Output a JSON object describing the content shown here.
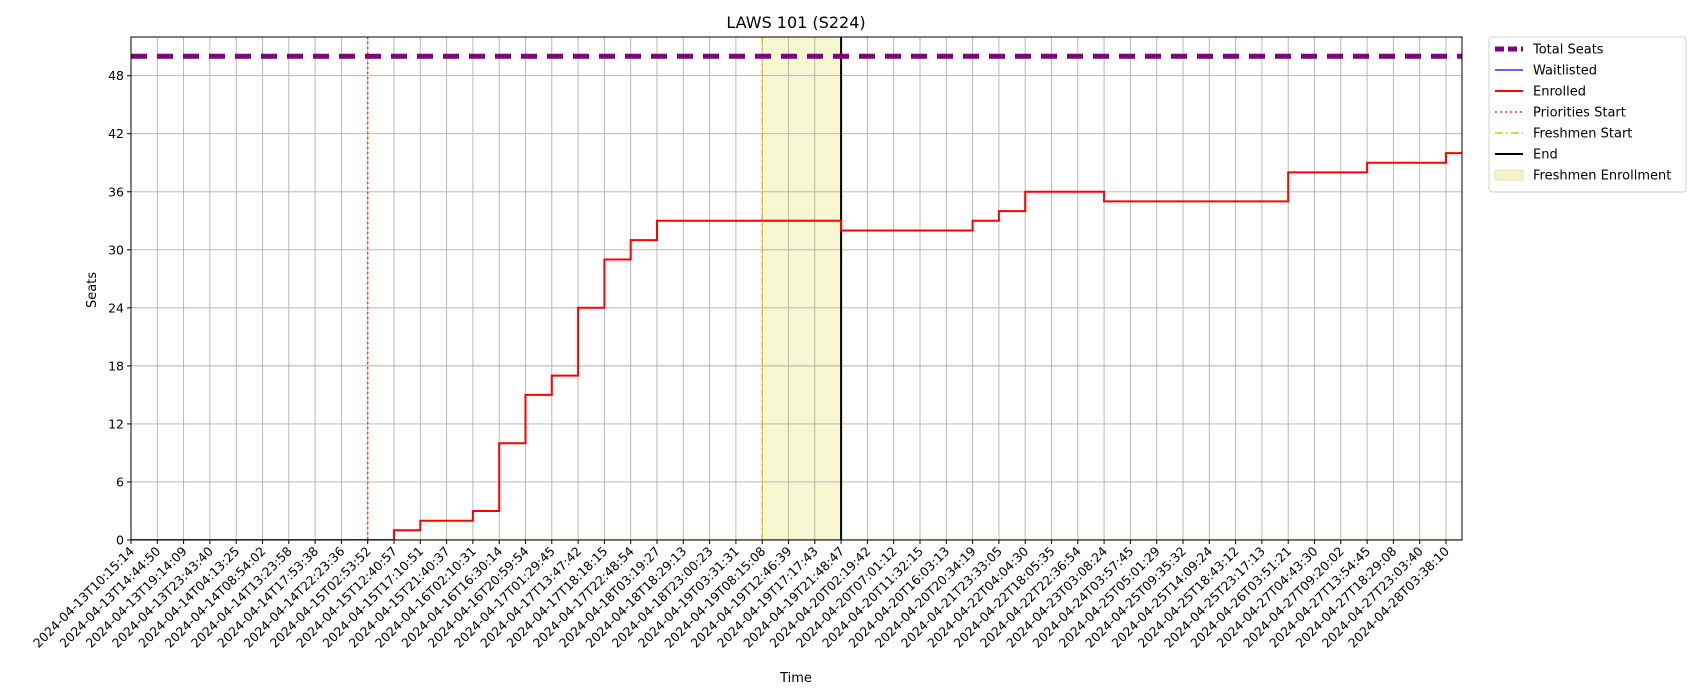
{
  "chart_data": {
    "type": "line",
    "title": "LAWS 101 (S224)",
    "xlabel": "Time",
    "ylabel": "Seats",
    "ylim": [
      0,
      52
    ],
    "yticks": [
      0,
      6,
      12,
      18,
      24,
      30,
      36,
      42,
      48
    ],
    "grid": true,
    "legend_placement": "outside-top-right",
    "x_ticks": [
      "2024-04-13T10:15:14",
      "2024-04-13T14:44:50",
      "2024-04-13T19:14:09",
      "2024-04-13T23:43:40",
      "2024-04-14T04:13:25",
      "2024-04-14T08:54:02",
      "2024-04-14T13:23:58",
      "2024-04-14T17:53:38",
      "2024-04-14T22:23:36",
      "2024-04-15T02:53:52",
      "2024-04-15T12:40:57",
      "2024-04-15T17:10:51",
      "2024-04-15T21:40:37",
      "2024-04-16T02:10:31",
      "2024-04-16T16:30:14",
      "2024-04-16T20:59:54",
      "2024-04-17T01:29:45",
      "2024-04-17T13:47:42",
      "2024-04-17T18:18:15",
      "2024-04-17T22:48:54",
      "2024-04-18T03:19:27",
      "2024-04-18T18:29:13",
      "2024-04-18T23:00:23",
      "2024-04-19T03:31:31",
      "2024-04-19T08:15:08",
      "2024-04-19T12:46:39",
      "2024-04-19T17:17:43",
      "2024-04-19T21:48:47",
      "2024-04-20T02:19:42",
      "2024-04-20T07:01:12",
      "2024-04-20T11:32:15",
      "2024-04-20T16:03:13",
      "2024-04-20T20:34:19",
      "2024-04-21T23:33:05",
      "2024-04-22T04:04:30",
      "2024-04-22T18:05:35",
      "2024-04-22T22:36:54",
      "2024-04-23T03:08:24",
      "2024-04-24T03:57:45",
      "2024-04-25T05:01:29",
      "2024-04-25T09:35:32",
      "2024-04-25T14:09:24",
      "2024-04-25T18:43:12",
      "2024-04-25T23:17:13",
      "2024-04-26T03:51:21",
      "2024-04-27T04:43:30",
      "2024-04-27T09:20:02",
      "2024-04-27T13:54:45",
      "2024-04-27T18:29:08",
      "2024-04-27T23:03:40",
      "2024-04-28T03:38:10"
    ],
    "series": [
      {
        "name": "Total Seats",
        "color": "#800080",
        "style": "dashed-thick",
        "points": [
          [
            "2024-04-13T10:15:14",
            50
          ],
          [
            "2024-04-28T03:38:10",
            50
          ]
        ]
      },
      {
        "name": "Waitlisted",
        "color": "#0000ff",
        "style": "solid-thin",
        "points": [
          [
            "2024-04-13T10:15:14",
            0
          ],
          [
            "2024-04-28T03:38:10",
            0
          ]
        ]
      },
      {
        "name": "Enrolled",
        "color": "#ff0000",
        "style": "step",
        "points": [
          [
            "2024-04-13T10:15:14",
            0
          ],
          [
            "2024-04-15T12:40:57",
            0
          ],
          [
            "2024-04-15T12:40:57",
            1
          ],
          [
            "2024-04-15T17:10:51",
            2
          ],
          [
            "2024-04-15T21:40:37",
            2
          ],
          [
            "2024-04-16T02:10:31",
            3
          ],
          [
            "2024-04-16T16:30:14",
            3
          ],
          [
            "2024-04-16T16:30:14",
            9
          ],
          [
            "2024-04-16T16:30:14",
            10
          ],
          [
            "2024-04-16T20:59:54",
            11
          ],
          [
            "2024-04-16T20:59:54",
            12
          ],
          [
            "2024-04-16T20:59:54",
            13
          ],
          [
            "2024-04-16T20:59:54",
            15
          ],
          [
            "2024-04-17T01:29:45",
            16
          ],
          [
            "2024-04-17T01:29:45",
            17
          ],
          [
            "2024-04-17T13:47:42",
            22
          ],
          [
            "2024-04-17T13:47:42",
            23
          ],
          [
            "2024-04-17T13:47:42",
            24
          ],
          [
            "2024-04-17T18:18:15",
            26
          ],
          [
            "2024-04-17T18:18:15",
            27
          ],
          [
            "2024-04-17T18:18:15",
            28
          ],
          [
            "2024-04-17T18:18:15",
            29
          ],
          [
            "2024-04-17T22:48:54",
            30
          ],
          [
            "2024-04-17T22:48:54",
            31
          ],
          [
            "2024-04-18T03:19:27",
            33
          ],
          [
            "2024-04-19T21:48:47",
            33
          ],
          [
            "2024-04-19T21:48:47",
            32
          ],
          [
            "2024-04-20T20:34:19",
            32
          ],
          [
            "2024-04-20T20:34:19",
            33
          ],
          [
            "2024-04-21T23:33:05",
            34
          ],
          [
            "2024-04-22T04:04:30",
            36
          ],
          [
            "2024-04-23T03:08:24",
            36
          ],
          [
            "2024-04-23T03:08:24",
            35
          ],
          [
            "2024-04-26T03:51:21",
            35
          ],
          [
            "2024-04-26T03:51:21",
            38
          ],
          [
            "2024-04-27T13:54:45",
            38
          ],
          [
            "2024-04-27T13:54:45",
            39
          ],
          [
            "2024-04-28T03:38:10",
            39
          ],
          [
            "2024-04-28T03:38:10",
            40
          ]
        ]
      }
    ],
    "vlines": [
      {
        "name": "Priorities Start",
        "x": "2024-04-15T02:53:52",
        "color": "#ff4500",
        "style": "dotted"
      },
      {
        "name": "Freshmen Start",
        "x": "2024-04-19T08:15:08",
        "color": "#cccc00",
        "style": "dashdot"
      },
      {
        "name": "End",
        "x": "2024-04-19T21:48:47",
        "color": "#000000",
        "style": "solid"
      }
    ],
    "spans": [
      {
        "name": "Freshmen Enrollment",
        "from": "2024-04-19T08:15:08",
        "to": "2024-04-19T21:48:47",
        "color": "#f5f5c8"
      }
    ],
    "legend": [
      {
        "label": "Total Seats",
        "color": "#800080",
        "kind": "dashed-thick"
      },
      {
        "label": "Waitlisted",
        "color": "#0000ff",
        "kind": "line-thin"
      },
      {
        "label": "Enrolled",
        "color": "#ff0000",
        "kind": "line"
      },
      {
        "label": "Priorities Start",
        "color": "#ff4500",
        "kind": "dotted"
      },
      {
        "label": "Freshmen Start",
        "color": "#cccc00",
        "kind": "dashdot"
      },
      {
        "label": "End",
        "color": "#000000",
        "kind": "line"
      },
      {
        "label": "Freshmen Enrollment",
        "color": "#f5f5c8",
        "kind": "patch"
      }
    ]
  }
}
